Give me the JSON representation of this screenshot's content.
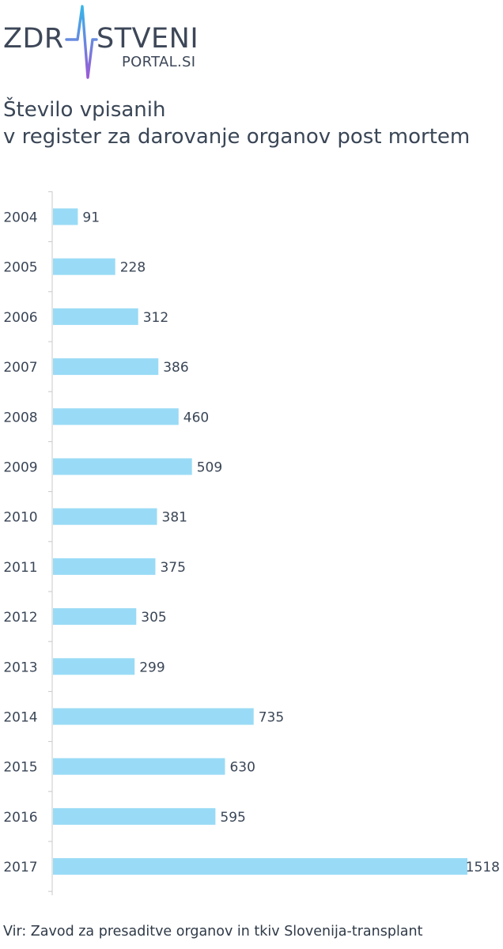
{
  "logo": {
    "left_text": "ZDR",
    "right_text": "STVENI",
    "sub_text": "PORTAL.SI"
  },
  "title": {
    "line1": "Število vpisanih",
    "line2": "v register za darovanje organov post mortem"
  },
  "source": "Vir: Zavod za presaditve organov in tkiv Slovenija-transplant",
  "colors": {
    "bar": "#99dbf6",
    "text": "#3a4656",
    "axis": "#c8c8c8"
  },
  "chart_data": {
    "type": "bar",
    "orientation": "horizontal",
    "categories": [
      "2004",
      "2005",
      "2006",
      "2007",
      "2008",
      "2009",
      "2010",
      "2011",
      "2012",
      "2013",
      "2014",
      "2015",
      "2016",
      "2017"
    ],
    "values": [
      91,
      228,
      312,
      386,
      460,
      509,
      381,
      375,
      305,
      299,
      735,
      630,
      595,
      1518
    ],
    "data_labels": [
      "91",
      "228",
      "312",
      "386",
      "460",
      "509",
      "381",
      "375",
      "305",
      "299",
      "735",
      "630",
      "595",
      "1518"
    ],
    "xlim": [
      0,
      1518
    ],
    "grid": false,
    "legend": "none"
  }
}
